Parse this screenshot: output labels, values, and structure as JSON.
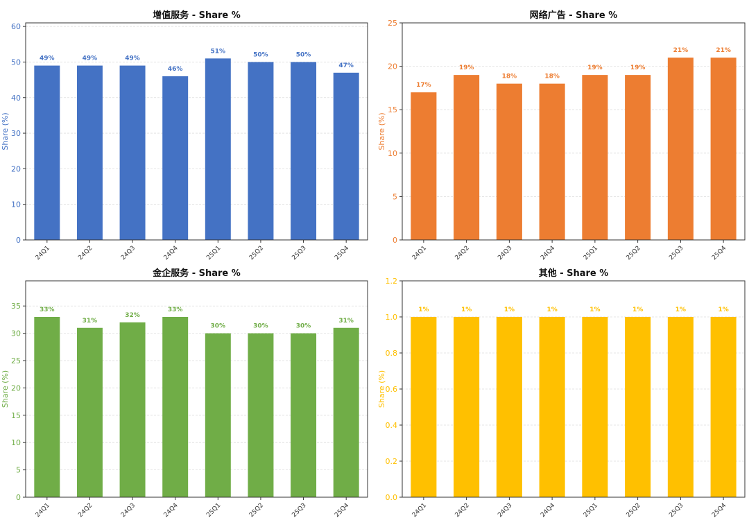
{
  "chart_data": [
    {
      "type": "bar",
      "title": "增值服务 - Share %",
      "ylabel": "Share (%)",
      "xlabel": "",
      "categories": [
        "24Q1",
        "24Q2",
        "24Q3",
        "24Q4",
        "25Q1",
        "25Q2",
        "25Q3",
        "25Q4"
      ],
      "values": [
        49,
        49,
        49,
        46,
        51,
        50,
        50,
        47
      ],
      "value_labels": [
        "49%",
        "49%",
        "49%",
        "46%",
        "51%",
        "50%",
        "50%",
        "47%"
      ],
      "ylim": [
        0,
        61
      ],
      "yticks": [
        0,
        10,
        20,
        30,
        40,
        50,
        60
      ],
      "ytick_labels": [
        "0",
        "10",
        "20",
        "30",
        "40",
        "50",
        "60"
      ],
      "color": "#4472C4",
      "grid": true
    },
    {
      "type": "bar",
      "title": "网络广告 - Share %",
      "ylabel": "Share (%)",
      "xlabel": "",
      "categories": [
        "24Q1",
        "24Q2",
        "24Q3",
        "24Q4",
        "25Q1",
        "25Q2",
        "25Q3",
        "25Q4"
      ],
      "values": [
        17,
        19,
        18,
        18,
        19,
        19,
        21,
        21
      ],
      "value_labels": [
        "17%",
        "19%",
        "18%",
        "18%",
        "19%",
        "19%",
        "21%",
        "21%"
      ],
      "ylim": [
        0,
        25
      ],
      "yticks": [
        0,
        5,
        10,
        15,
        20,
        25
      ],
      "ytick_labels": [
        "0",
        "5",
        "10",
        "15",
        "20",
        "25"
      ],
      "color": "#ED7D31",
      "grid": true
    },
    {
      "type": "bar",
      "title": "金企服务 - Share %",
      "ylabel": "Share (%)",
      "xlabel": "",
      "categories": [
        "24Q1",
        "24Q2",
        "24Q3",
        "24Q4",
        "25Q1",
        "25Q2",
        "25Q3",
        "25Q4"
      ],
      "values": [
        33,
        31,
        32,
        33,
        30,
        30,
        30,
        31
      ],
      "value_labels": [
        "33%",
        "31%",
        "32%",
        "33%",
        "30%",
        "30%",
        "30%",
        "31%"
      ],
      "ylim": [
        0,
        39.6
      ],
      "yticks": [
        0,
        5,
        10,
        15,
        20,
        25,
        30,
        35
      ],
      "ytick_labels": [
        "0",
        "5",
        "10",
        "15",
        "20",
        "25",
        "30",
        "35"
      ],
      "color": "#70AD47",
      "grid": true
    },
    {
      "type": "bar",
      "title": "其他 - Share %",
      "ylabel": "Share (%)",
      "xlabel": "",
      "categories": [
        "24Q1",
        "24Q2",
        "24Q3",
        "24Q4",
        "25Q1",
        "25Q2",
        "25Q3",
        "25Q4"
      ],
      "values": [
        1,
        1,
        1,
        1,
        1,
        1,
        1,
        1
      ],
      "value_labels": [
        "1%",
        "1%",
        "1%",
        "1%",
        "1%",
        "1%",
        "1%",
        "1%"
      ],
      "ylim": [
        0,
        1.2
      ],
      "yticks": [
        0,
        0.2,
        0.4,
        0.6,
        0.8,
        1.0,
        1.2
      ],
      "ytick_labels": [
        "0.0",
        "0.2",
        "0.4",
        "0.6",
        "0.8",
        "1.0",
        "1.2"
      ],
      "color": "#FFC000",
      "grid": true
    }
  ]
}
